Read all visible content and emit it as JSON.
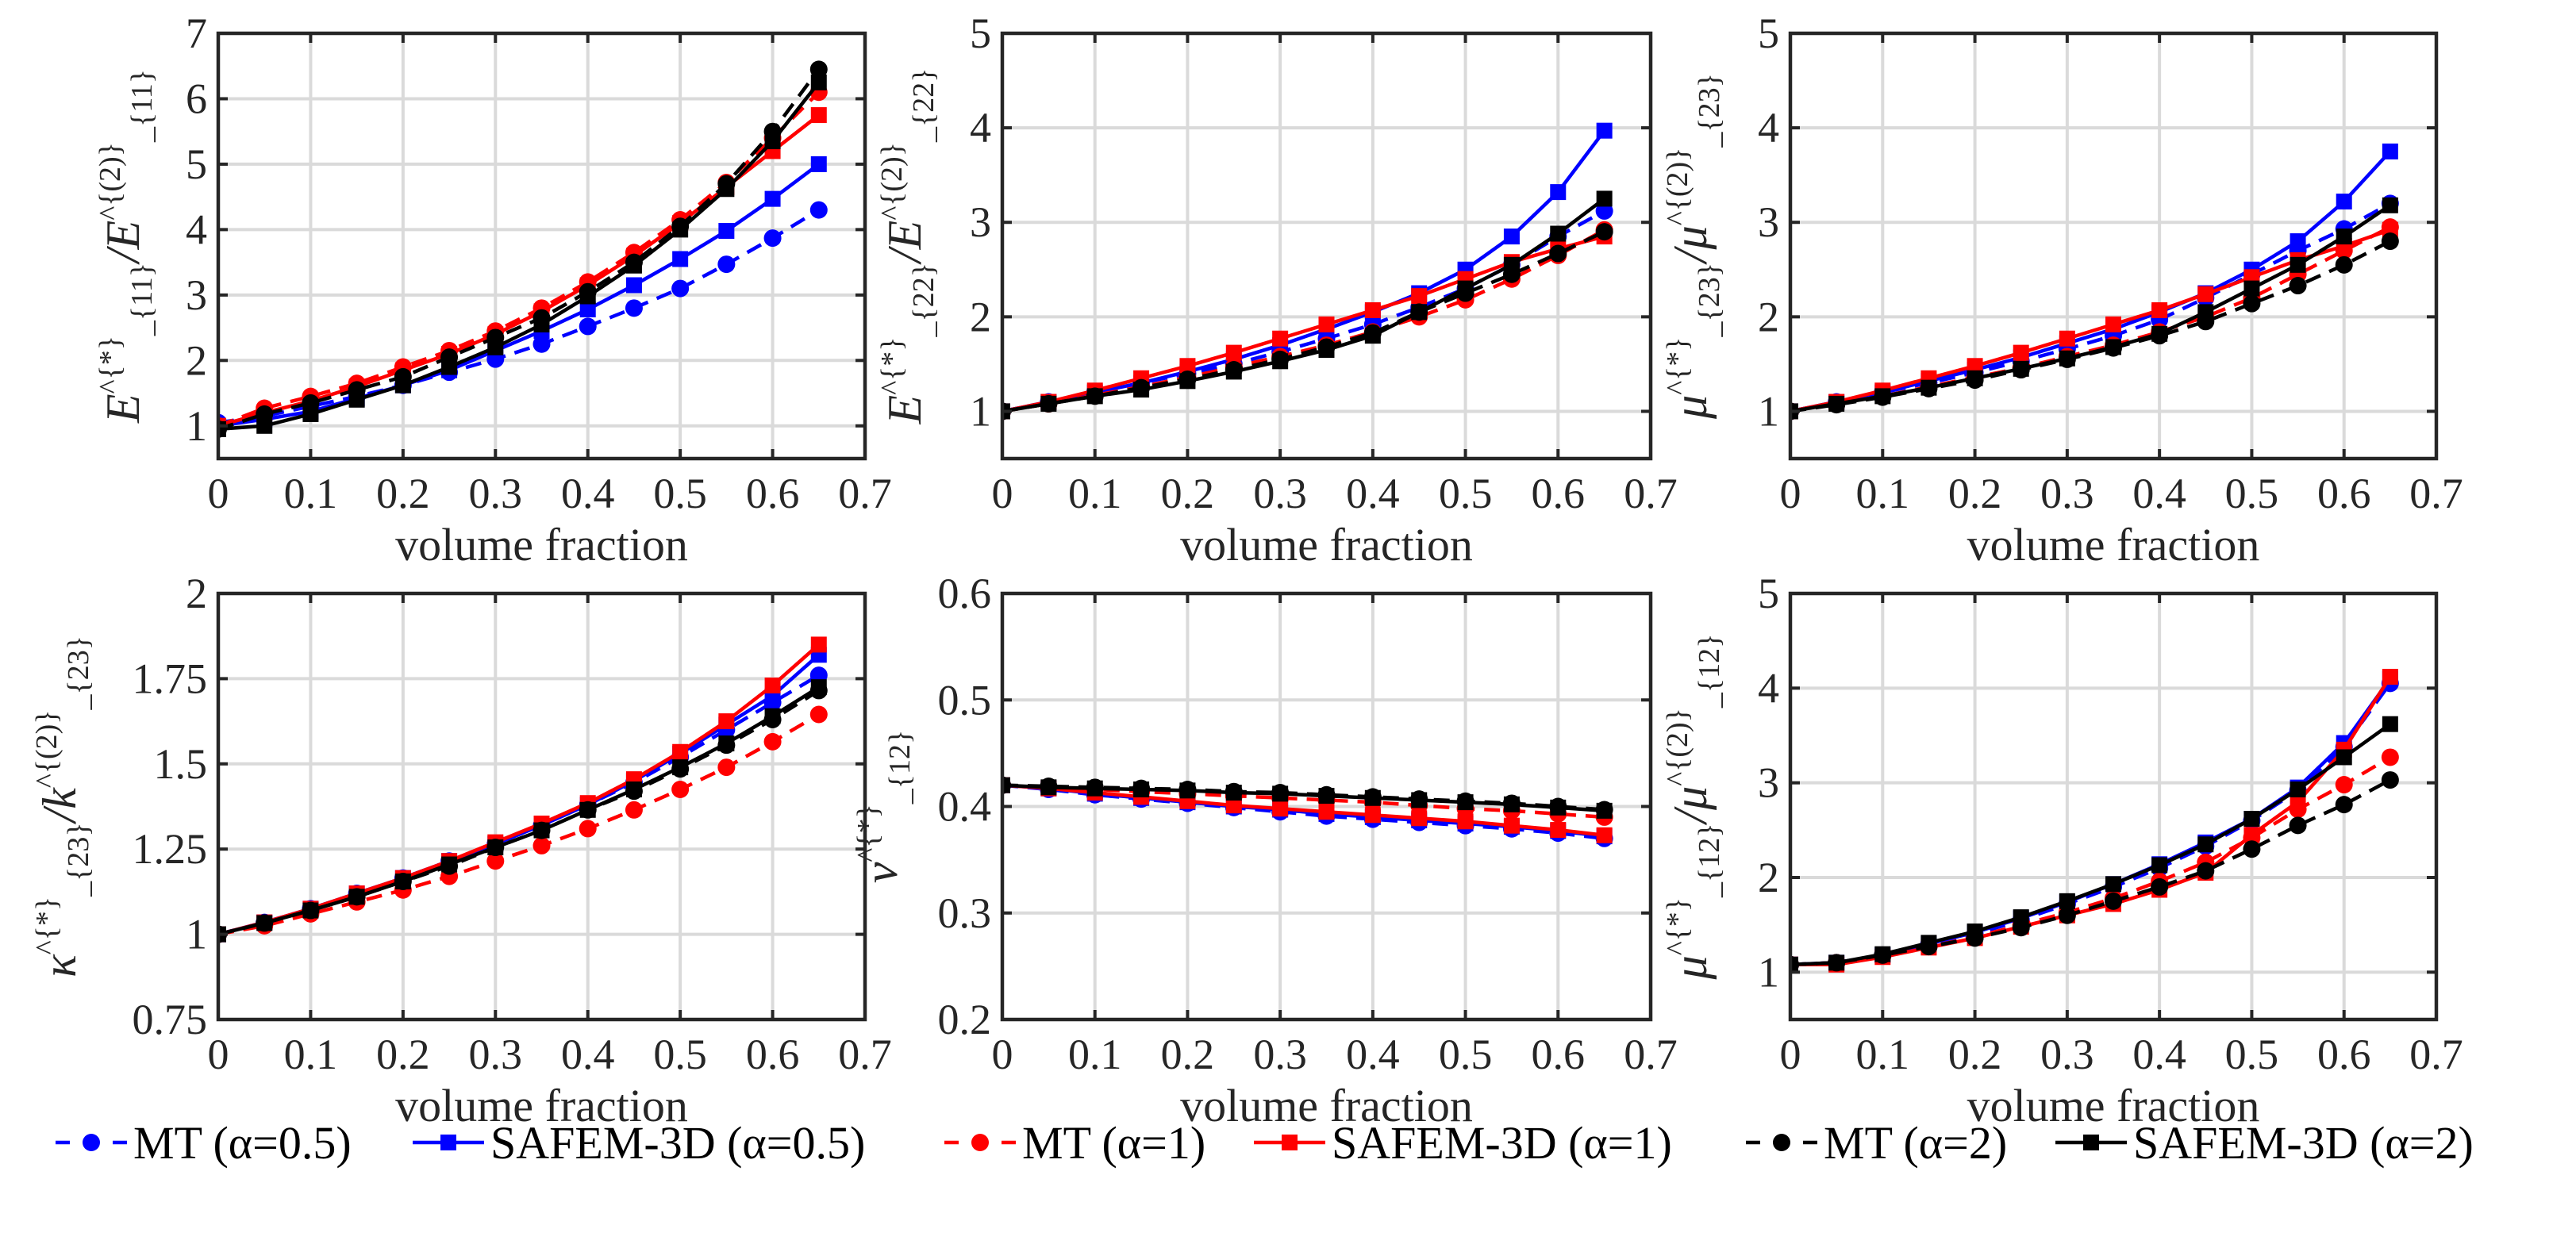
{
  "legend": [
    {
      "label": "MT (α=0.5)",
      "color": "#0000ff",
      "marker": "circle",
      "dash": true
    },
    {
      "label": "SAFEM-3D (α=0.5)",
      "color": "#0000ff",
      "marker": "square",
      "dash": false
    },
    {
      "label": "MT (α=1)",
      "color": "#ff0000",
      "marker": "circle",
      "dash": true
    },
    {
      "label": "SAFEM-3D (α=1)",
      "color": "#ff0000",
      "marker": "square",
      "dash": false
    },
    {
      "label": "MT (α=2)",
      "color": "#000000",
      "marker": "circle",
      "dash": true
    },
    {
      "label": "SAFEM-3D (α=2)",
      "color": "#000000",
      "marker": "square",
      "dash": false
    }
  ],
  "chart_data": [
    {
      "type": "line",
      "xlabel": "volume fraction",
      "ylabel": "E^{*}_{11}/E^{(2)}_{11}",
      "x": [
        0,
        0.05,
        0.1,
        0.15,
        0.2,
        0.25,
        0.3,
        0.35,
        0.4,
        0.45,
        0.5,
        0.55,
        0.6,
        0.65
      ],
      "xlim": [
        0,
        0.7
      ],
      "xticks": [
        0,
        0.1,
        0.2,
        0.3,
        0.4,
        0.5,
        0.6,
        0.7
      ],
      "xtick_labels": [
        "0",
        "0.1",
        "0.2",
        "0.3",
        "0.4",
        "0.5",
        "0.6",
        "0.7"
      ],
      "ylim": [
        0.5,
        7
      ],
      "yticks": [
        1,
        2,
        3,
        4,
        5,
        6,
        7
      ],
      "ytick_labels": [
        "1",
        "2",
        "3",
        "4",
        "5",
        "6",
        "7"
      ],
      "grid": true,
      "series": [
        {
          "name": "MT (α=0.5)",
          "values": [
            1.05,
            1.15,
            1.3,
            1.45,
            1.62,
            1.82,
            2.02,
            2.25,
            2.52,
            2.8,
            3.1,
            3.47,
            3.87,
            4.3
          ]
        },
        {
          "name": "SAFEM-3D (α=0.5)",
          "values": [
            1.0,
            1.1,
            1.22,
            1.42,
            1.62,
            1.85,
            2.15,
            2.45,
            2.78,
            3.15,
            3.55,
            3.98,
            4.47,
            5.0
          ]
        },
        {
          "name": "MT (α=1)",
          "values": [
            1.0,
            1.27,
            1.45,
            1.65,
            1.9,
            2.15,
            2.45,
            2.8,
            3.2,
            3.65,
            4.15,
            4.72,
            5.4,
            6.1
          ]
        },
        {
          "name": "SAFEM-3D (α=1)",
          "values": [
            1.0,
            1.2,
            1.38,
            1.6,
            1.85,
            2.1,
            2.4,
            2.75,
            3.15,
            3.6,
            4.1,
            4.65,
            5.2,
            5.75
          ]
        },
        {
          "name": "MT (α=2)",
          "values": [
            0.95,
            1.18,
            1.35,
            1.55,
            1.75,
            2.05,
            2.35,
            2.65,
            3.05,
            3.5,
            4.05,
            4.7,
            5.5,
            6.45
          ]
        },
        {
          "name": "SAFEM-3D (α=2)",
          "values": [
            0.95,
            1.0,
            1.18,
            1.4,
            1.62,
            1.9,
            2.2,
            2.55,
            2.98,
            3.45,
            4.0,
            4.62,
            5.35,
            6.25
          ]
        }
      ]
    },
    {
      "type": "line",
      "xlabel": "volume fraction",
      "ylabel": "E^{*}_{22}/E^{(2)}_{22}",
      "x": [
        0,
        0.05,
        0.1,
        0.15,
        0.2,
        0.25,
        0.3,
        0.35,
        0.4,
        0.45,
        0.5,
        0.55,
        0.6,
        0.65
      ],
      "xlim": [
        0,
        0.7
      ],
      "xticks": [
        0,
        0.1,
        0.2,
        0.3,
        0.4,
        0.5,
        0.6,
        0.7
      ],
      "xtick_labels": [
        "0",
        "0.1",
        "0.2",
        "0.3",
        "0.4",
        "0.5",
        "0.6",
        "0.7"
      ],
      "ylim": [
        0.5,
        5
      ],
      "yticks": [
        1,
        2,
        3,
        4,
        5
      ],
      "ytick_labels": [
        "1",
        "2",
        "3",
        "4",
        "5"
      ],
      "grid": true,
      "series": [
        {
          "name": "MT (α=0.5)",
          "values": [
            1,
            1.1,
            1.2,
            1.3,
            1.4,
            1.5,
            1.63,
            1.77,
            1.92,
            2.1,
            2.3,
            2.55,
            2.85,
            3.12
          ]
        },
        {
          "name": "SAFEM-3D (α=0.5)",
          "values": [
            1,
            1.1,
            1.2,
            1.3,
            1.42,
            1.55,
            1.7,
            1.87,
            2.05,
            2.25,
            2.5,
            2.85,
            3.32,
            3.97
          ]
        },
        {
          "name": "MT (α=1)",
          "values": [
            1,
            1.08,
            1.17,
            1.26,
            1.36,
            1.47,
            1.58,
            1.7,
            1.84,
            2.0,
            2.18,
            2.4,
            2.65,
            2.92
          ]
        },
        {
          "name": "SAFEM-3D (α=1)",
          "values": [
            1,
            1.1,
            1.22,
            1.35,
            1.48,
            1.62,
            1.77,
            1.92,
            2.07,
            2.22,
            2.4,
            2.58,
            2.72,
            2.85
          ]
        },
        {
          "name": "MT (α=2)",
          "values": [
            1,
            1.08,
            1.16,
            1.25,
            1.34,
            1.44,
            1.55,
            1.68,
            1.83,
            2.05,
            2.25,
            2.45,
            2.67,
            2.9
          ]
        },
        {
          "name": "SAFEM-3D (α=2)",
          "values": [
            1,
            1.08,
            1.16,
            1.23,
            1.32,
            1.42,
            1.53,
            1.65,
            1.8,
            2.05,
            2.3,
            2.55,
            2.88,
            3.25
          ]
        }
      ]
    },
    {
      "type": "line",
      "xlabel": "volume fraction",
      "ylabel": "μ^{*}_{23}/μ^{(2)}_{23}",
      "x": [
        0,
        0.05,
        0.1,
        0.15,
        0.2,
        0.25,
        0.3,
        0.35,
        0.4,
        0.45,
        0.5,
        0.55,
        0.6,
        0.65
      ],
      "xlim": [
        0,
        0.7
      ],
      "xticks": [
        0,
        0.1,
        0.2,
        0.3,
        0.4,
        0.5,
        0.6,
        0.7
      ],
      "xtick_labels": [
        "0",
        "0.1",
        "0.2",
        "0.3",
        "0.4",
        "0.5",
        "0.6",
        "0.7"
      ],
      "ylim": [
        0.5,
        5
      ],
      "yticks": [
        1,
        2,
        3,
        4,
        5
      ],
      "ytick_labels": [
        "1",
        "2",
        "3",
        "4",
        "5"
      ],
      "grid": true,
      "series": [
        {
          "name": "MT (α=0.5)",
          "values": [
            1,
            1.1,
            1.2,
            1.3,
            1.41,
            1.53,
            1.66,
            1.8,
            1.97,
            2.2,
            2.45,
            2.7,
            2.93,
            3.2
          ]
        },
        {
          "name": "SAFEM-3D (α=0.5)",
          "values": [
            1,
            1.1,
            1.2,
            1.32,
            1.44,
            1.57,
            1.72,
            1.87,
            2.05,
            2.25,
            2.5,
            2.8,
            3.22,
            3.75
          ]
        },
        {
          "name": "MT (α=1)",
          "values": [
            1,
            1.08,
            1.16,
            1.26,
            1.36,
            1.46,
            1.58,
            1.7,
            1.84,
            2.0,
            2.2,
            2.45,
            2.7,
            2.95
          ]
        },
        {
          "name": "SAFEM-3D (α=1)",
          "values": [
            1,
            1.1,
            1.22,
            1.35,
            1.48,
            1.62,
            1.77,
            1.92,
            2.07,
            2.24,
            2.42,
            2.6,
            2.75,
            2.92
          ]
        },
        {
          "name": "MT (α=2)",
          "values": [
            1,
            1.07,
            1.15,
            1.24,
            1.33,
            1.44,
            1.55,
            1.67,
            1.8,
            1.95,
            2.14,
            2.33,
            2.55,
            2.8
          ]
        },
        {
          "name": "SAFEM-3D (α=2)",
          "values": [
            1,
            1.08,
            1.16,
            1.25,
            1.35,
            1.45,
            1.56,
            1.68,
            1.82,
            2.05,
            2.3,
            2.55,
            2.85,
            3.18
          ]
        }
      ]
    },
    {
      "type": "line",
      "xlabel": "volume fraction",
      "ylabel": "κ^{*}_{23}/k^{(2)}_{23}",
      "x": [
        0,
        0.05,
        0.1,
        0.15,
        0.2,
        0.25,
        0.3,
        0.35,
        0.4,
        0.45,
        0.5,
        0.55,
        0.6,
        0.65
      ],
      "xlim": [
        0,
        0.7
      ],
      "xticks": [
        0,
        0.1,
        0.2,
        0.3,
        0.4,
        0.5,
        0.6,
        0.7
      ],
      "xtick_labels": [
        "0",
        "0.1",
        "0.2",
        "0.3",
        "0.4",
        "0.5",
        "0.6",
        "0.7"
      ],
      "ylim": [
        0.75,
        2
      ],
      "yticks": [
        0.75,
        1,
        1.25,
        1.5,
        1.75,
        2
      ],
      "ytick_labels": [
        "0.75",
        "1",
        "1.25",
        "1.5",
        "1.75",
        "2"
      ],
      "grid": true,
      "series": [
        {
          "name": "MT (α=0.5)",
          "values": [
            1,
            1.035,
            1.075,
            1.12,
            1.165,
            1.215,
            1.265,
            1.32,
            1.38,
            1.445,
            1.52,
            1.6,
            1.68,
            1.76
          ]
        },
        {
          "name": "SAFEM-3D (α=0.5)",
          "values": [
            1,
            1.035,
            1.075,
            1.12,
            1.165,
            1.215,
            1.265,
            1.32,
            1.38,
            1.45,
            1.53,
            1.615,
            1.7,
            1.82
          ]
        },
        {
          "name": "MT (α=1)",
          "values": [
            1,
            1.025,
            1.06,
            1.095,
            1.13,
            1.17,
            1.215,
            1.26,
            1.31,
            1.365,
            1.425,
            1.49,
            1.565,
            1.645
          ]
        },
        {
          "name": "SAFEM-3D (α=1)",
          "values": [
            1,
            1.035,
            1.075,
            1.12,
            1.165,
            1.215,
            1.27,
            1.325,
            1.385,
            1.455,
            1.535,
            1.625,
            1.73,
            1.85
          ]
        },
        {
          "name": "MT (α=2)",
          "values": [
            1,
            1.033,
            1.07,
            1.11,
            1.155,
            1.2,
            1.255,
            1.305,
            1.365,
            1.42,
            1.485,
            1.555,
            1.63,
            1.715
          ]
        },
        {
          "name": "SAFEM-3D (α=2)",
          "values": [
            1,
            1.033,
            1.07,
            1.11,
            1.155,
            1.205,
            1.255,
            1.305,
            1.365,
            1.425,
            1.49,
            1.56,
            1.64,
            1.725
          ]
        }
      ]
    },
    {
      "type": "line",
      "xlabel": "volume fraction",
      "ylabel": "ν^{*}_{12}",
      "x": [
        0,
        0.05,
        0.1,
        0.15,
        0.2,
        0.25,
        0.3,
        0.35,
        0.4,
        0.45,
        0.5,
        0.55,
        0.6,
        0.65
      ],
      "xlim": [
        0,
        0.7
      ],
      "xticks": [
        0,
        0.1,
        0.2,
        0.3,
        0.4,
        0.5,
        0.6,
        0.7
      ],
      "xtick_labels": [
        "0",
        "0.1",
        "0.2",
        "0.3",
        "0.4",
        "0.5",
        "0.6",
        "0.7"
      ],
      "ylim": [
        0.2,
        0.6
      ],
      "yticks": [
        0.2,
        0.3,
        0.4,
        0.5,
        0.6
      ],
      "ytick_labels": [
        "0.2",
        "0.3",
        "0.4",
        "0.5",
        "0.6"
      ],
      "grid": true,
      "series": [
        {
          "name": "MT (α=0.5)",
          "values": [
            0.42,
            0.416,
            0.411,
            0.407,
            0.403,
            0.399,
            0.395,
            0.391,
            0.388,
            0.385,
            0.382,
            0.379,
            0.375,
            0.37
          ]
        },
        {
          "name": "SAFEM-3D (α=0.5)",
          "values": [
            0.42,
            0.417,
            0.412,
            0.408,
            0.404,
            0.4,
            0.397,
            0.393,
            0.39,
            0.387,
            0.384,
            0.381,
            0.377,
            0.372
          ]
        },
        {
          "name": "MT (α=1)",
          "values": [
            0.42,
            0.418,
            0.416,
            0.414,
            0.412,
            0.41,
            0.408,
            0.406,
            0.404,
            0.401,
            0.398,
            0.396,
            0.393,
            0.39
          ]
        },
        {
          "name": "SAFEM-3D (α=1)",
          "values": [
            0.42,
            0.417,
            0.413,
            0.409,
            0.405,
            0.401,
            0.398,
            0.395,
            0.392,
            0.389,
            0.386,
            0.382,
            0.378,
            0.373
          ]
        },
        {
          "name": "MT (α=2)",
          "values": [
            0.42,
            0.419,
            0.418,
            0.417,
            0.416,
            0.414,
            0.413,
            0.411,
            0.409,
            0.407,
            0.405,
            0.403,
            0.4,
            0.397
          ]
        },
        {
          "name": "SAFEM-3D (α=2)",
          "values": [
            0.42,
            0.418,
            0.417,
            0.416,
            0.415,
            0.413,
            0.412,
            0.41,
            0.408,
            0.406,
            0.404,
            0.402,
            0.399,
            0.396
          ]
        }
      ]
    },
    {
      "type": "line",
      "xlabel": "volume fraction",
      "ylabel": "μ^{*}_{12}/μ^{(2)}_{12}",
      "x": [
        0,
        0.05,
        0.1,
        0.15,
        0.2,
        0.25,
        0.3,
        0.35,
        0.4,
        0.45,
        0.5,
        0.55,
        0.6,
        0.65
      ],
      "xlim": [
        0,
        0.7
      ],
      "xticks": [
        0,
        0.1,
        0.2,
        0.3,
        0.4,
        0.5,
        0.6,
        0.7
      ],
      "xtick_labels": [
        "0",
        "0.1",
        "0.2",
        "0.3",
        "0.4",
        "0.5",
        "0.6",
        "0.7"
      ],
      "ylim": [
        0.5,
        5
      ],
      "yticks": [
        1,
        2,
        3,
        4,
        5
      ],
      "ytick_labels": [
        "1",
        "2",
        "3",
        "4",
        "5"
      ],
      "grid": true,
      "series": [
        {
          "name": "MT (α=0.5)",
          "values": [
            1.08,
            1.1,
            1.18,
            1.29,
            1.4,
            1.55,
            1.72,
            1.9,
            2.1,
            2.33,
            2.6,
            2.92,
            3.38,
            4.05
          ]
        },
        {
          "name": "SAFEM-3D (α=0.5)",
          "values": [
            1.08,
            1.1,
            1.18,
            1.3,
            1.42,
            1.57,
            1.74,
            1.93,
            2.14,
            2.37,
            2.62,
            2.95,
            3.42,
            4.1
          ]
        },
        {
          "name": "MT (α=1)",
          "values": [
            1.08,
            1.1,
            1.17,
            1.27,
            1.37,
            1.5,
            1.63,
            1.78,
            1.96,
            2.16,
            2.42,
            2.72,
            2.98,
            3.27
          ]
        },
        {
          "name": "SAFEM-3D (α=1)",
          "values": [
            1.08,
            1.08,
            1.16,
            1.26,
            1.36,
            1.48,
            1.6,
            1.72,
            1.87,
            2.05,
            2.45,
            2.8,
            3.35,
            4.12
          ]
        },
        {
          "name": "MT (α=2)",
          "values": [
            1.08,
            1.1,
            1.18,
            1.27,
            1.36,
            1.47,
            1.6,
            1.75,
            1.9,
            2.07,
            2.3,
            2.55,
            2.77,
            3.03
          ]
        },
        {
          "name": "SAFEM-3D (α=2)",
          "values": [
            1.08,
            1.1,
            1.19,
            1.31,
            1.43,
            1.58,
            1.75,
            1.93,
            2.13,
            2.35,
            2.62,
            2.93,
            3.27,
            3.62
          ]
        }
      ]
    }
  ]
}
